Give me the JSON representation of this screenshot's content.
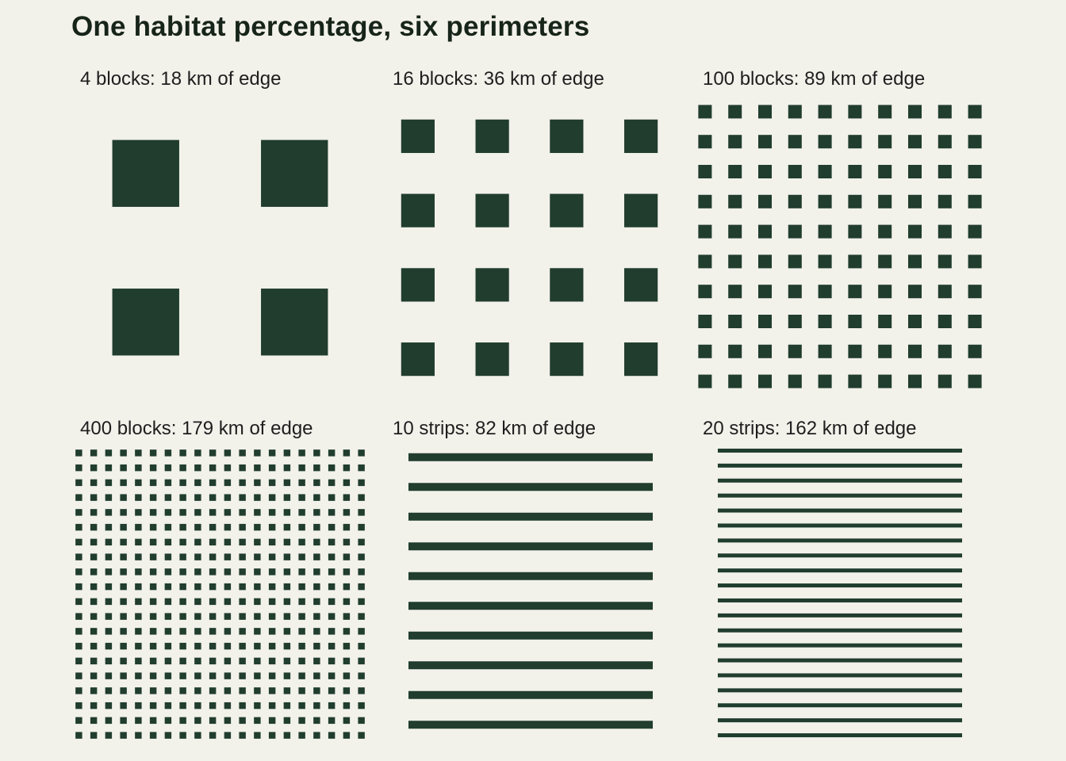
{
  "title": "One habitat percentage, six perimeters",
  "colors": {
    "background": "#f2f1ea",
    "habitat": "#203d2e",
    "text": "#1e1e1e"
  },
  "chart_data": {
    "type": "other",
    "title": "One habitat percentage, six perimeters",
    "panels": [
      {
        "label": "4 blocks: 18 km of edge",
        "kind": "blocks",
        "count": 4,
        "grid": 2,
        "edge_km": 18
      },
      {
        "label": "16 blocks: 36 km of edge",
        "kind": "blocks",
        "count": 16,
        "grid": 4,
        "edge_km": 36
      },
      {
        "label": "100 blocks: 89 km of edge",
        "kind": "blocks",
        "count": 100,
        "grid": 10,
        "edge_km": 89
      },
      {
        "label": "400 blocks: 179 km of edge",
        "kind": "blocks",
        "count": 400,
        "grid": 20,
        "edge_km": 179
      },
      {
        "label": "10 strips: 82 km of edge",
        "kind": "strips",
        "count": 10,
        "edge_km": 82
      },
      {
        "label": "20 strips: 162 km of edge",
        "kind": "strips",
        "count": 20,
        "edge_km": 162
      }
    ]
  }
}
